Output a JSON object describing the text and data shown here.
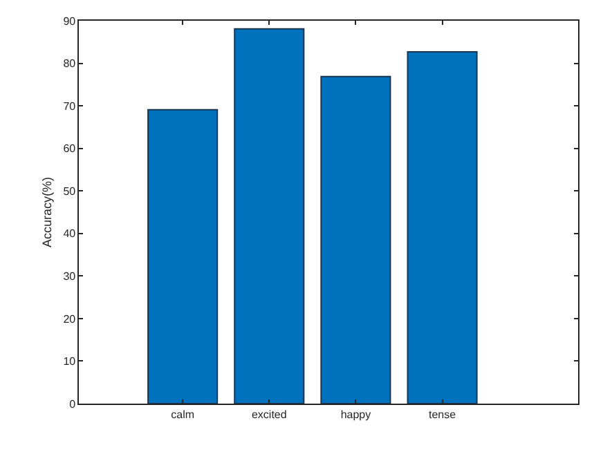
{
  "chart_data": {
    "type": "bar",
    "ylabel": "Accuracy(%)",
    "categories": [
      "calm",
      "excited",
      "happy",
      "tense"
    ],
    "values": [
      69.1,
      88.1,
      76.9,
      82.7
    ],
    "color": "#0072bd",
    "ylim": [
      0,
      90
    ],
    "yticks": [
      0,
      10,
      20,
      30,
      40,
      50,
      60,
      70,
      80,
      90
    ],
    "grid": false
  }
}
